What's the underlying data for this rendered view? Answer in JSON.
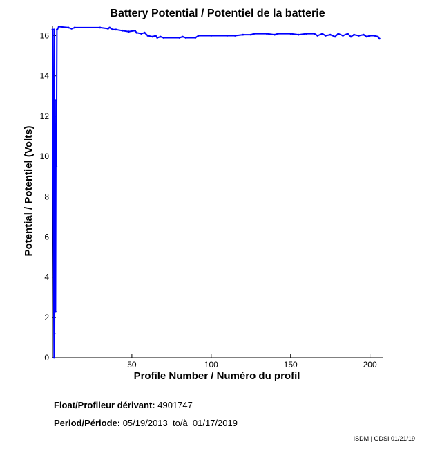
{
  "chart_data": {
    "type": "line",
    "title": "Battery Potential / Potentiel de la batterie",
    "xlabel": "Profile Number / Numéro du profil",
    "ylabel": "Potential / Potentiel (Volts)",
    "xlim": [
      0,
      208
    ],
    "ylim": [
      0,
      16.5
    ],
    "xticks": [
      50,
      100,
      150,
      200
    ],
    "yticks": [
      0,
      2,
      4,
      6,
      8,
      10,
      12,
      14,
      16
    ],
    "grid": false,
    "color": "#0000ff",
    "series": [
      {
        "name": "",
        "points": [
          [
            0,
            16.3
          ],
          [
            1,
            0.0
          ],
          [
            1,
            16.3
          ],
          [
            1.3,
            1.2
          ],
          [
            1.6,
            11.6
          ],
          [
            1.9,
            2.3
          ],
          [
            2.2,
            12.8
          ],
          [
            2.5,
            9.5
          ],
          [
            2.8,
            16.3
          ],
          [
            3,
            16.3
          ],
          [
            4,
            16.45
          ],
          [
            10,
            16.4
          ],
          [
            12,
            16.35
          ],
          [
            14,
            16.4
          ],
          [
            30,
            16.4
          ],
          [
            35,
            16.35
          ],
          [
            36,
            16.4
          ],
          [
            38,
            16.3
          ],
          [
            40,
            16.3
          ],
          [
            44,
            16.25
          ],
          [
            48,
            16.2
          ],
          [
            52,
            16.25
          ],
          [
            53,
            16.15
          ],
          [
            56,
            16.1
          ],
          [
            58,
            16.15
          ],
          [
            60,
            16.0
          ],
          [
            63,
            15.95
          ],
          [
            65,
            16.0
          ],
          [
            66,
            15.9
          ],
          [
            68,
            15.95
          ],
          [
            70,
            15.9
          ],
          [
            80,
            15.9
          ],
          [
            82,
            15.95
          ],
          [
            84,
            15.9
          ],
          [
            90,
            15.9
          ],
          [
            92,
            16.0
          ],
          [
            100,
            16.0
          ],
          [
            110,
            16.0
          ],
          [
            115,
            16.0
          ],
          [
            120,
            16.05
          ],
          [
            125,
            16.05
          ],
          [
            127,
            16.1
          ],
          [
            135,
            16.1
          ],
          [
            140,
            16.05
          ],
          [
            142,
            16.1
          ],
          [
            150,
            16.1
          ],
          [
            155,
            16.05
          ],
          [
            160,
            16.1
          ],
          [
            165,
            16.1
          ],
          [
            167,
            16.0
          ],
          [
            170,
            16.1
          ],
          [
            172,
            16.0
          ],
          [
            175,
            16.05
          ],
          [
            178,
            15.95
          ],
          [
            180,
            16.1
          ],
          [
            183,
            16.0
          ],
          [
            186,
            16.1
          ],
          [
            188,
            15.95
          ],
          [
            190,
            16.05
          ],
          [
            193,
            16.0
          ],
          [
            196,
            16.05
          ],
          [
            198,
            15.95
          ],
          [
            200,
            16.0
          ],
          [
            203,
            16.0
          ],
          [
            205,
            15.95
          ],
          [
            206,
            15.85
          ]
        ]
      }
    ]
  },
  "info": {
    "float_label": "Float/Profileur dérivant:",
    "float_value": "4901747",
    "period_label": "Period/Période:",
    "period_value": "05/19/2013  to/à  01/17/2019"
  },
  "credit": "ISDM | GDSI 01/21/19"
}
